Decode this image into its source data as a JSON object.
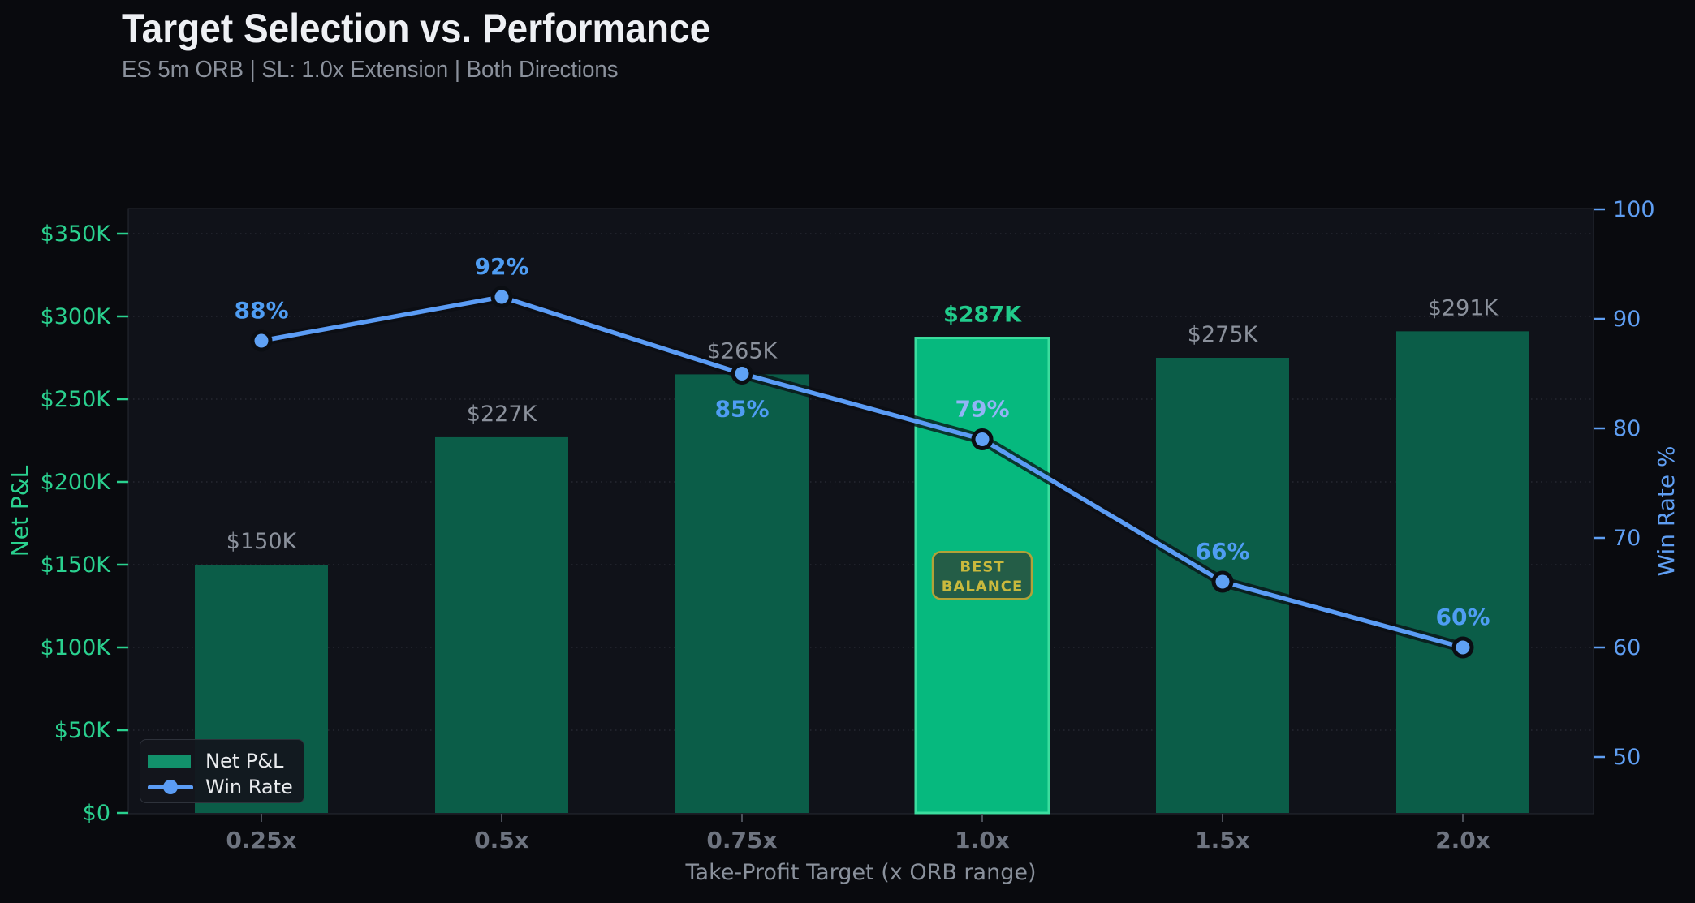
{
  "header": {
    "title": "Target Selection vs. Performance",
    "subtitle": "ES 5m ORB  |  SL: 1.0x Extension  |  Both Directions"
  },
  "legend": {
    "items": [
      {
        "label": "Net P&L",
        "marker": "bar-swatch"
      },
      {
        "label": "Win Rate",
        "marker": "line-dot"
      }
    ],
    "position": "lower-left"
  },
  "annotation_badge": {
    "line1": "BEST",
    "line2": "BALANCE",
    "applies_to_category": "1.0x"
  },
  "colors": {
    "page_bg": "#090a0e",
    "plot_bg": "#101219",
    "plot_border": "#262b33",
    "gridline": "#3a3f4a",
    "bar": "#0b5d48",
    "bar_highlight": "#06b97e",
    "bar_highlight_border": "#3bdd9e",
    "bar_label_gray": "#8b919c",
    "bar_label_highlight": "#21cc8c",
    "line_blue": "#5b9cf5",
    "marker_fill": "#5fa1f4",
    "marker_ring": "#0b0e13",
    "win_label_blue": "#4f9df3",
    "win_label_soft": "#93b4f6",
    "axis_green": "#2ad18f",
    "axis_blue": "#5f9ef2",
    "x_tick_label": "#6e7480",
    "x_axis_title": "#8a919c",
    "badge_bg": "#245d47",
    "badge_border": "#b2a238",
    "badge_text": "#c9b93d"
  },
  "chart_data": {
    "type": "bar",
    "subtype": "bar+line dual-axis combo",
    "title": "Target Selection vs. Performance",
    "subtitle": "ES 5m ORB | SL: 1.0x Extension | Both Directions",
    "categories": [
      "0.25x",
      "0.5x",
      "0.75x",
      "1.0x",
      "1.5x",
      "2.0x"
    ],
    "series": [
      {
        "name": "Net P&L",
        "type": "bar",
        "axis": "left",
        "values_thousands": [
          150,
          227,
          265,
          287,
          275,
          291
        ],
        "data_labels": [
          "$150K",
          "$227K",
          "$265K",
          "$287K",
          "$275K",
          "$291K"
        ],
        "highlight_index": 3
      },
      {
        "name": "Win Rate",
        "type": "line",
        "axis": "right",
        "values_percent": [
          88,
          92,
          85,
          79,
          66,
          60
        ],
        "data_labels": [
          "88%",
          "92%",
          "85%",
          "79%",
          "66%",
          "60%"
        ],
        "label_side": [
          "above",
          "above",
          "below",
          "above",
          "above",
          "above"
        ]
      }
    ],
    "x_axis": {
      "label": "Take-Profit Target (x ORB range)"
    },
    "left_axis": {
      "label": "Net P&L",
      "tick_labels": [
        "$0",
        "$50K",
        "$100K",
        "$150K",
        "$200K",
        "$250K",
        "$300K",
        "$350K"
      ],
      "tick_values_thousands": [
        0,
        50,
        100,
        150,
        200,
        250,
        300,
        350
      ],
      "ylim_thousands": [
        0,
        365
      ]
    },
    "right_axis": {
      "label": "Win Rate %",
      "tick_labels": [
        "50",
        "60",
        "70",
        "80",
        "90",
        "100"
      ],
      "tick_values": [
        50,
        60,
        70,
        80,
        90,
        100
      ],
      "ylim": [
        45,
        100
      ]
    },
    "grid": "horizontal dotted at left-axis ticks",
    "legend_position": "lower left"
  }
}
